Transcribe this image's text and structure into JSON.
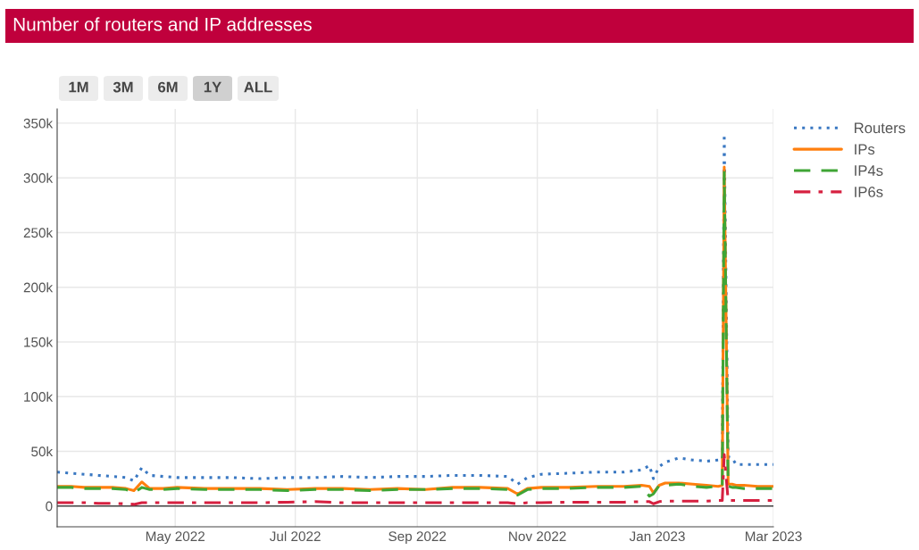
{
  "chart_data": {
    "type": "line",
    "title": "Number of routers and IP addresses",
    "annotations": [
      "1M",
      "3M",
      "6M",
      "1Y",
      "ALL"
    ],
    "x": [
      "2022-03-02",
      "2022-03-09",
      "2022-03-16",
      "2022-03-23",
      "2022-03-30",
      "2022-04-06",
      "2022-04-10",
      "2022-04-14",
      "2022-04-18",
      "2022-04-25",
      "2022-05-02",
      "2022-05-16",
      "2022-05-30",
      "2022-06-13",
      "2022-06-27",
      "2022-07-11",
      "2022-07-25",
      "2022-08-08",
      "2022-08-22",
      "2022-09-05",
      "2022-09-19",
      "2022-10-03",
      "2022-10-17",
      "2022-10-22",
      "2022-10-27",
      "2022-11-03",
      "2022-11-17",
      "2022-12-01",
      "2022-12-15",
      "2022-12-24",
      "2022-12-28",
      "2022-12-30",
      "2023-01-02",
      "2023-01-05",
      "2023-01-12",
      "2023-01-19",
      "2023-01-26",
      "2023-02-01",
      "2023-02-03",
      "2023-02-04",
      "2023-02-06",
      "2023-02-08",
      "2023-02-10",
      "2023-02-14",
      "2023-02-21",
      "2023-03-01"
    ],
    "series": [
      {
        "name": "Routers",
        "color": "#3a78c2",
        "line_style": "dotted",
        "values": [
          31000,
          30000,
          29000,
          28000,
          27000,
          26000,
          23000,
          35000,
          28000,
          27000,
          26000,
          26000,
          26000,
          25000,
          26000,
          26000,
          27000,
          26000,
          27000,
          27000,
          28000,
          28000,
          27000,
          20000,
          26000,
          29000,
          30000,
          31000,
          31000,
          33000,
          37000,
          25000,
          36000,
          40000,
          44000,
          42000,
          41000,
          42000,
          42000,
          340000,
          45000,
          44000,
          38000,
          38000,
          38000,
          38000
        ]
      },
      {
        "name": "IPs",
        "color": "#ff7f0e",
        "line_style": "solid",
        "values": [
          18000,
          18000,
          17000,
          17000,
          17000,
          16000,
          14000,
          22000,
          16000,
          16000,
          17000,
          16000,
          16000,
          16000,
          15000,
          16000,
          16000,
          15000,
          16000,
          15000,
          17000,
          17000,
          16000,
          11000,
          16000,
          17000,
          17000,
          18000,
          18000,
          19000,
          18000,
          12000,
          19000,
          21000,
          21000,
          20000,
          19000,
          18000,
          19000,
          310000,
          20000,
          20000,
          19000,
          19000,
          18000,
          18000
        ]
      },
      {
        "name": "IP4s",
        "color": "#3fa535",
        "line_style": "dashed",
        "values": [
          17000,
          17000,
          16000,
          16000,
          16000,
          15000,
          12000,
          17000,
          15000,
          15000,
          16000,
          15000,
          15000,
          15000,
          14000,
          15000,
          15000,
          14000,
          15000,
          15000,
          16000,
          16000,
          15000,
          10000,
          15000,
          16000,
          16000,
          17000,
          17000,
          18000,
          9000,
          11000,
          19000,
          19000,
          20000,
          18000,
          17000,
          18000,
          18000,
          305000,
          18000,
          17000,
          17000,
          16000,
          16000,
          16000
        ]
      },
      {
        "name": "IP6s",
        "color": "#d62040",
        "line_style": "dashdot",
        "values": [
          3000,
          3000,
          3000,
          2500,
          2500,
          2000,
          1500,
          3000,
          3000,
          3000,
          3000,
          3000,
          3000,
          3000,
          3500,
          4000,
          3000,
          3000,
          3000,
          3000,
          3000,
          3000,
          3000,
          2000,
          3000,
          3000,
          3500,
          3500,
          3500,
          4000,
          4000,
          2000,
          4000,
          4500,
          4500,
          4500,
          4500,
          5000,
          5000,
          47000,
          5000,
          5000,
          5000,
          5000,
          5000,
          5000
        ]
      }
    ],
    "xlim": [
      "2022-03-02",
      "2023-03-01"
    ],
    "xticks": [
      {
        "value": "2022-05-01",
        "label": "May 2022"
      },
      {
        "value": "2022-07-01",
        "label": "Jul 2022"
      },
      {
        "value": "2022-09-01",
        "label": "Sep 2022"
      },
      {
        "value": "2022-11-01",
        "label": "Nov 2022"
      },
      {
        "value": "2023-01-01",
        "label": "Jan 2023"
      },
      {
        "value": "2023-03-01",
        "label": "Mar 2023"
      }
    ],
    "ylim": [
      -19000,
      363000
    ],
    "yticks": [
      0,
      {
        "value": 50000,
        "label": "50k"
      },
      {
        "value": 100000,
        "label": "100k"
      },
      {
        "value": 150000,
        "label": "150k"
      },
      {
        "value": 200000,
        "label": "200k"
      },
      {
        "value": 250000,
        "label": "250k"
      },
      {
        "value": 300000,
        "label": "300k"
      },
      {
        "value": 350000,
        "label": "350k"
      }
    ],
    "ref_lines": [
      {
        "axis": "y",
        "value": 0,
        "color": "#444444"
      }
    ],
    "grid": true,
    "legend": "top right"
  }
}
